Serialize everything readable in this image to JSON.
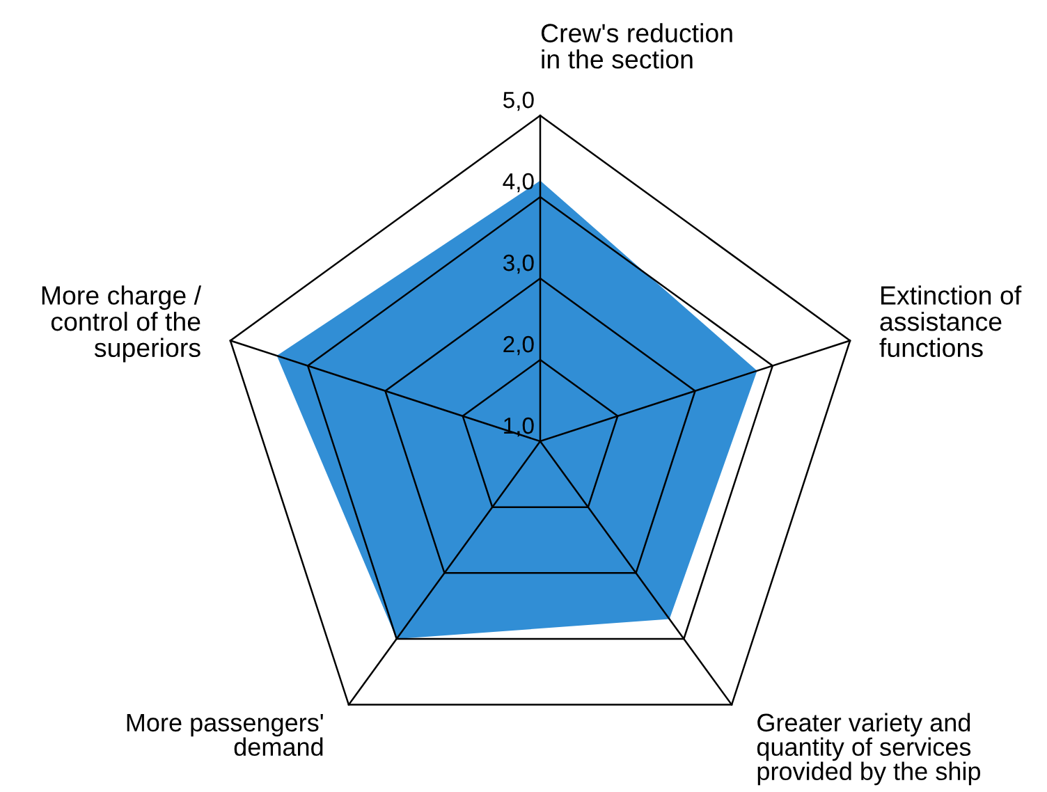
{
  "chart_data": {
    "type": "radar",
    "categories": [
      "Crew's reduction\nin the section",
      "Extinction of\nassistance\nfunctions",
      "Greater variety and\nquantity of services\nprovided by the ship",
      "More passengers'\ndemand",
      "More charge /\ncontrol of the\nsuperiors"
    ],
    "series": [
      {
        "color": "#318ed5",
        "values": [
          4.2,
          3.8,
          3.7,
          4.0,
          4.4
        ]
      }
    ],
    "ylim": [
      1,
      5
    ],
    "yticks": [
      {
        "value": 1,
        "label": "1,0"
      },
      {
        "value": 2,
        "label": "2,0"
      },
      {
        "value": 3,
        "label": "3,0"
      },
      {
        "value": 4,
        "label": "4,0"
      },
      {
        "value": 5,
        "label": "5,0"
      }
    ]
  }
}
